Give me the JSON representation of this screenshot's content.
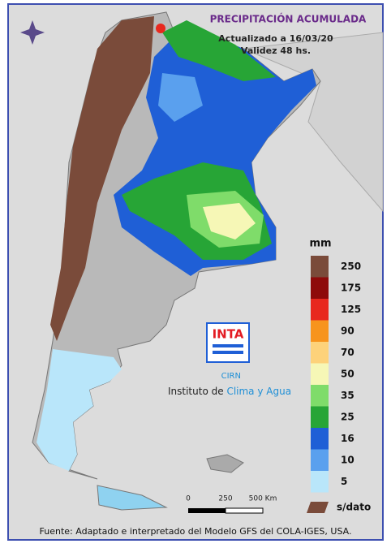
{
  "header": {
    "title": "PRECIPITACIÓN ACUMULADA",
    "updated": "Actualizado a 16/03/20",
    "validity": "Validez 48 hs."
  },
  "legend": {
    "unit": "mm",
    "items": [
      {
        "label": 250,
        "color": "#7a4b3a"
      },
      {
        "label": 175,
        "color": "#8e0a0a"
      },
      {
        "label": 125,
        "color": "#e8281e"
      },
      {
        "label": 90,
        "color": "#f7941d"
      },
      {
        "label": 70,
        "color": "#fdd27a"
      },
      {
        "label": 50,
        "color": "#f6f7b6"
      },
      {
        "label": 35,
        "color": "#7fdc6a"
      },
      {
        "label": 25,
        "color": "#27a536"
      },
      {
        "label": 16,
        "color": "#1f5fd6"
      },
      {
        "label": 10,
        "color": "#5aa0ee"
      },
      {
        "label": 5,
        "color": "#b9e6fa"
      }
    ],
    "no_data": "s/dato"
  },
  "logo": {
    "brand": "INTA",
    "sub": "CIRN",
    "institute_prefix": "Instituto de",
    "institute_highlight": "Clima y Agua"
  },
  "scale": {
    "labels": [
      "0",
      "250",
      "500 Km"
    ]
  },
  "footer": "Fuente: Adaptado e interpretado del Modelo GFS del COLA-IGES, USA."
}
